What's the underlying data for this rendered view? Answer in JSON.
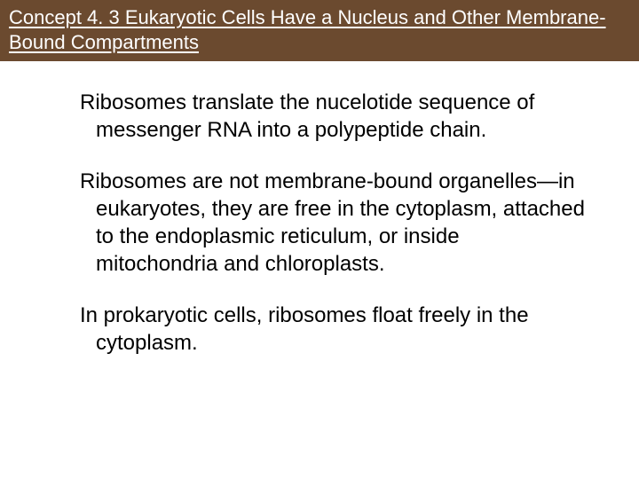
{
  "header": {
    "background_color": "#6b4a2f",
    "text_color": "#ffffff",
    "title": "Concept 4. 3 Eukaryotic Cells Have a Nucleus and Other Membrane-Bound Compartments"
  },
  "body": {
    "text_color": "#000000",
    "background_color": "#ffffff",
    "paragraphs": [
      "Ribosomes translate the nucelotide sequence of messenger RNA into a polypeptide chain.",
      "Ribosomes are not membrane-bound organelles—in eukaryotes, they are free in the cytoplasm, attached to the endoplasmic reticulum, or inside mitochondria and chloroplasts.",
      "In prokaryotic cells, ribosomes float freely in the cytoplasm."
    ]
  }
}
